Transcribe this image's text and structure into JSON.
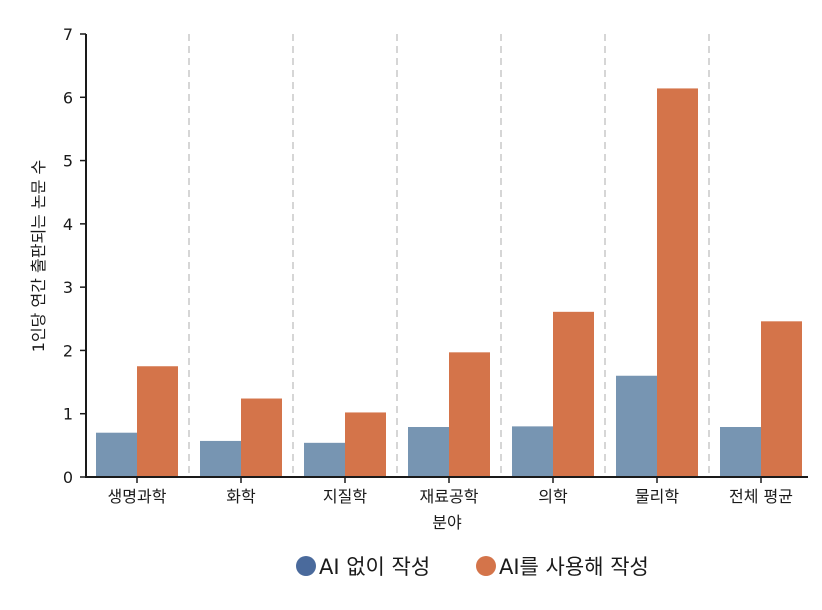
{
  "chart_data": {
    "type": "bar",
    "categories": [
      "생명과학",
      "화학",
      "지질학",
      "재료공학",
      "의학",
      "물리학",
      "전체 평균"
    ],
    "series": [
      {
        "name": "AI 없이 작성",
        "values": [
          0.7,
          0.57,
          0.54,
          0.79,
          0.8,
          1.6,
          0.79
        ],
        "color": "#7795b2"
      },
      {
        "name": "AI를 사용해 작성",
        "values": [
          1.75,
          1.24,
          1.02,
          1.97,
          2.61,
          6.14,
          2.46
        ],
        "color": "#d4744a"
      }
    ],
    "title": "",
    "xlabel": "분야",
    "ylabel": "1인당 연간 출판되는 논문 수",
    "ylim": [
      0,
      7
    ],
    "yticks": [
      0,
      1,
      2,
      3,
      4,
      5,
      6,
      7
    ],
    "grid": "vertical-dashed",
    "legend_position": "bottom",
    "legend_marker_colors": [
      "#4a6a9c",
      "#d4744a"
    ]
  }
}
